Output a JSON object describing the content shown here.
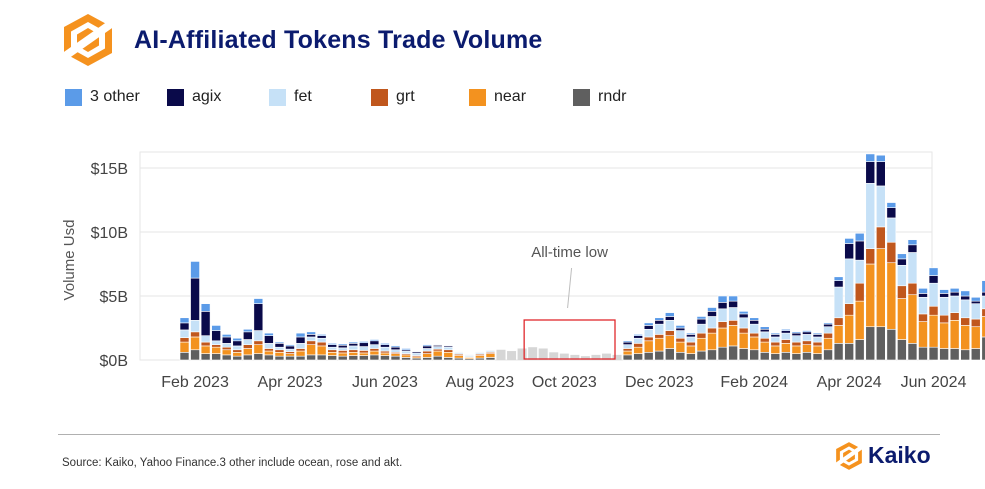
{
  "title": "AI-Affiliated Tokens Trade Volume",
  "legend": [
    {
      "label": "3 other",
      "color": "#5b9be8"
    },
    {
      "label": "agix",
      "color": "#0a0a4a"
    },
    {
      "label": "fet",
      "color": "#c6e1f7"
    },
    {
      "label": "grt",
      "color": "#c0571d"
    },
    {
      "label": "near",
      "color": "#f3921f"
    },
    {
      "label": "rndr",
      "color": "#5f5f5f"
    }
  ],
  "chart_data": {
    "type": "bar",
    "stacked": true,
    "ylabel": "Volume Usd",
    "ylim": [
      0,
      16.5
    ],
    "yunit": "B USD",
    "ytick_labels": [
      "$0B",
      "$5B",
      "$10B",
      "$15B"
    ],
    "ytick_values": [
      0,
      5,
      10,
      15
    ],
    "xtick_labels": [
      "Feb 2023",
      "Apr 2023",
      "Jun 2023",
      "Aug 2023",
      "Oct 2023",
      "Dec 2023",
      "Feb 2024",
      "Apr 2024",
      "Jun 2024"
    ],
    "xtick_weeks": [
      1,
      10,
      19,
      28,
      36,
      45,
      54,
      63,
      71
    ],
    "stack_order": [
      "rndr",
      "near",
      "grt",
      "fet",
      "agix",
      "3 other"
    ],
    "grey_period_color": "#d6d6d6",
    "grey_period_totals": [
      0.8,
      0.7,
      0.9,
      1.0,
      0.9,
      0.6,
      0.5,
      0.4,
      0.3,
      0.4,
      0.5,
      0.4
    ],
    "grey_period_start_week": 30,
    "weeks": [
      [
        0.6,
        0.8,
        0.35,
        0.6,
        0.55,
        0.4
      ],
      [
        0.8,
        1.0,
        0.4,
        0.9,
        3.3,
        1.3
      ],
      [
        0.5,
        0.6,
        0.3,
        0.5,
        1.9,
        0.6
      ],
      [
        0.5,
        0.5,
        0.2,
        0.3,
        0.8,
        0.4
      ],
      [
        0.4,
        0.4,
        0.2,
        0.3,
        0.5,
        0.2
      ],
      [
        0.3,
        0.3,
        0.2,
        0.3,
        0.4,
        0.2
      ],
      [
        0.4,
        0.5,
        0.3,
        0.4,
        0.6,
        0.2
      ],
      [
        0.5,
        0.7,
        0.3,
        0.8,
        2.1,
        0.4
      ],
      [
        0.4,
        0.3,
        0.2,
        0.4,
        0.6,
        0.2
      ],
      [
        0.3,
        0.3,
        0.2,
        0.2,
        0.3,
        0.1
      ],
      [
        0.3,
        0.2,
        0.15,
        0.2,
        0.25,
        0.1
      ],
      [
        0.3,
        0.4,
        0.2,
        0.4,
        0.5,
        0.3
      ],
      [
        0.4,
        0.8,
        0.3,
        0.3,
        0.2,
        0.2
      ],
      [
        0.4,
        0.7,
        0.3,
        0.3,
        0.2,
        0.1
      ],
      [
        0.35,
        0.25,
        0.2,
        0.2,
        0.2,
        0.1
      ],
      [
        0.3,
        0.25,
        0.2,
        0.2,
        0.2,
        0.1
      ],
      [
        0.35,
        0.25,
        0.2,
        0.3,
        0.2,
        0.1
      ],
      [
        0.35,
        0.2,
        0.2,
        0.3,
        0.3,
        0.1
      ],
      [
        0.4,
        0.3,
        0.2,
        0.3,
        0.3,
        0.1
      ],
      [
        0.35,
        0.2,
        0.15,
        0.3,
        0.2,
        0.1
      ],
      [
        0.3,
        0.2,
        0.1,
        0.2,
        0.2,
        0.1
      ],
      [
        0.2,
        0.2,
        0.1,
        0.2,
        0.1,
        0.1
      ],
      [
        0.15,
        0.1,
        0.1,
        0.2,
        0.1,
        0.05
      ],
      [
        0.2,
        0.3,
        0.2,
        0.2,
        0.2,
        0.1
      ],
      [
        0.3,
        0.4,
        0.15,
        0.2,
        0.1,
        0.05
      ],
      [
        0.2,
        0.4,
        0.2,
        0.2,
        0.1,
        0.05
      ],
      [
        0.15,
        0.2,
        0.1,
        0.1,
        0.05,
        0.05
      ],
      [
        0.1,
        0.1,
        0.05,
        0.1,
        0.05,
        0.05
      ],
      [
        0.15,
        0.2,
        0.1,
        0.1,
        0.05,
        0.05
      ],
      [
        0.2,
        0.3,
        0.1,
        0.1,
        0.05,
        0.05
      ],
      null,
      null,
      null,
      null,
      null,
      null,
      null,
      null,
      null,
      null,
      null,
      null,
      [
        0.4,
        0.3,
        0.2,
        0.3,
        0.2,
        0.1
      ],
      [
        0.5,
        0.5,
        0.3,
        0.4,
        0.2,
        0.1
      ],
      [
        0.6,
        0.9,
        0.3,
        0.6,
        0.3,
        0.2
      ],
      [
        0.7,
        1.0,
        0.3,
        0.8,
        0.3,
        0.2
      ],
      [
        0.9,
        1.0,
        0.4,
        0.8,
        0.3,
        0.3
      ],
      [
        0.6,
        0.8,
        0.3,
        0.6,
        0.2,
        0.2
      ],
      [
        0.5,
        0.6,
        0.3,
        0.4,
        0.2,
        0.1
      ],
      [
        0.7,
        1.0,
        0.4,
        0.7,
        0.4,
        0.2
      ],
      [
        0.8,
        1.3,
        0.4,
        0.9,
        0.4,
        0.3
      ],
      [
        1.0,
        1.5,
        0.5,
        1.0,
        0.5,
        0.5
      ],
      [
        1.1,
        1.6,
        0.4,
        1.0,
        0.5,
        0.4
      ],
      [
        0.9,
        1.2,
        0.4,
        0.8,
        0.3,
        0.2
      ],
      [
        0.8,
        1.0,
        0.3,
        0.7,
        0.3,
        0.2
      ],
      [
        0.6,
        0.8,
        0.3,
        0.5,
        0.2,
        0.2
      ],
      [
        0.5,
        0.6,
        0.3,
        0.4,
        0.2,
        0.1
      ],
      [
        0.6,
        0.7,
        0.3,
        0.5,
        0.2,
        0.1
      ],
      [
        0.5,
        0.6,
        0.3,
        0.5,
        0.2,
        0.1
      ],
      [
        0.6,
        0.6,
        0.3,
        0.5,
        0.2,
        0.1
      ],
      [
        0.5,
        0.6,
        0.3,
        0.4,
        0.2,
        0.1
      ],
      [
        0.8,
        0.9,
        0.4,
        0.5,
        0.2,
        0.1
      ],
      [
        1.3,
        1.4,
        0.6,
        2.4,
        0.5,
        0.3
      ],
      [
        1.3,
        2.2,
        0.9,
        3.5,
        1.2,
        0.4
      ],
      [
        1.6,
        3.0,
        1.4,
        1.8,
        1.5,
        0.6
      ],
      [
        2.6,
        4.9,
        1.2,
        5.1,
        1.7,
        0.6
      ],
      [
        2.6,
        6.1,
        1.7,
        3.2,
        1.9,
        0.5
      ],
      [
        2.4,
        5.2,
        1.6,
        1.9,
        0.8,
        0.4
      ],
      [
        1.6,
        3.2,
        1.0,
        1.6,
        0.5,
        0.4
      ],
      [
        1.3,
        3.8,
        0.9,
        2.4,
        0.6,
        0.4
      ],
      [
        1.0,
        2.0,
        0.6,
        1.3,
        0.3,
        0.4
      ],
      [
        1.0,
        2.5,
        0.7,
        1.8,
        0.6,
        0.6
      ],
      [
        0.9,
        2.0,
        0.6,
        1.4,
        0.3,
        0.3
      ],
      [
        0.9,
        2.2,
        0.6,
        1.3,
        0.3,
        0.3
      ],
      [
        0.8,
        1.9,
        0.6,
        1.4,
        0.3,
        0.4
      ],
      [
        0.9,
        1.7,
        0.6,
        1.2,
        0.2,
        0.3
      ],
      [
        1.8,
        1.6,
        0.6,
        1.0,
        0.3,
        0.9
      ],
      [
        1.4,
        1.7,
        0.5,
        1.0,
        0.3,
        0.5
      ],
      [
        1.2,
        1.9,
        0.5,
        1.2,
        0.3,
        0.6
      ]
    ]
  },
  "annotation": "All-time low",
  "source": "Source: Kaiko, Yahoo Finance.3 other include ocean, rose and akt.",
  "brand": "Kaiko"
}
